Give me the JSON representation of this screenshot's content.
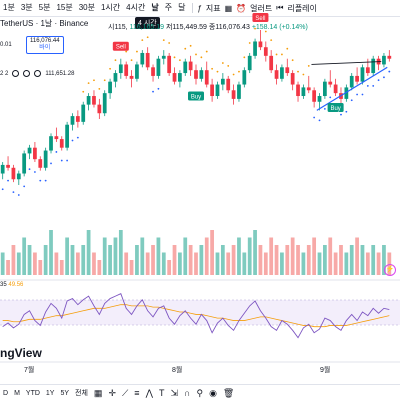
{
  "toolbar": {
    "timeframes": [
      "1분",
      "3분",
      "5분",
      "15분",
      "30분",
      "1시간",
      "4시간",
      "날",
      "주",
      "달"
    ],
    "active_timeframe": "날",
    "indicators_label": "지표",
    "alerts_label": "얼러트",
    "replay_label": "리플레이"
  },
  "tooltip": "4 시간",
  "symbol": {
    "name": "TetherUS · 1날 · Binance"
  },
  "ohlc": {
    "o": "시115,",
    "h": "116,165.19",
    "l": "저115,449.59",
    "c": "종116,076.43",
    "change": "+158.14 (+0.14%)"
  },
  "price_box": {
    "price": "116,076.44",
    "sub": "바이"
  },
  "left_values": {
    "v1": "0.01",
    "v2": "111,651.28"
  },
  "indicator_row": {
    "params": "2 2"
  },
  "signals": {
    "sell": "Sell",
    "buy": "Buy"
  },
  "rsi": {
    "prefix": "35",
    "value": "49.56"
  },
  "brand": "ngView",
  "months": {
    "jul": "7월",
    "aug": "8월",
    "sep": "9월"
  },
  "bottom": {
    "d": "D",
    "m": "M",
    "ytd": "YTD",
    "y1": "1Y",
    "y5": "5Y",
    "all": "전체"
  },
  "colors": {
    "up": "#089981",
    "down": "#f23645",
    "accent": "#2962ff"
  },
  "chart_data": {
    "type": "candlestick",
    "candles": [
      [
        100,
        104,
        98,
        103
      ],
      [
        103,
        106,
        101,
        102
      ],
      [
        102,
        103,
        97,
        98
      ],
      [
        98,
        101,
        96,
        100
      ],
      [
        100,
        108,
        99,
        107
      ],
      [
        107,
        110,
        105,
        109
      ],
      [
        109,
        111,
        104,
        105
      ],
      [
        105,
        106,
        101,
        102
      ],
      [
        102,
        109,
        101,
        108
      ],
      [
        108,
        114,
        107,
        113
      ],
      [
        113,
        116,
        111,
        112
      ],
      [
        112,
        113,
        108,
        109
      ],
      [
        109,
        118,
        108,
        117
      ],
      [
        117,
        121,
        115,
        120
      ],
      [
        120,
        122,
        116,
        118
      ],
      [
        118,
        125,
        117,
        124
      ],
      [
        124,
        128,
        122,
        127
      ],
      [
        127,
        129,
        123,
        124
      ],
      [
        124,
        126,
        119,
        121
      ],
      [
        121,
        129,
        120,
        128
      ],
      [
        128,
        133,
        126,
        132
      ],
      [
        132,
        136,
        130,
        135
      ],
      [
        135,
        140,
        133,
        138
      ],
      [
        138,
        139,
        133,
        134
      ],
      [
        134,
        136,
        130,
        133
      ],
      [
        133,
        139,
        132,
        138
      ],
      [
        138,
        143,
        137,
        142
      ],
      [
        142,
        144,
        136,
        137
      ],
      [
        137,
        138,
        132,
        134
      ],
      [
        134,
        141,
        133,
        140
      ],
      [
        140,
        143,
        138,
        141
      ],
      [
        141,
        142,
        134,
        135
      ],
      [
        135,
        137,
        131,
        132
      ],
      [
        132,
        136,
        130,
        135
      ],
      [
        135,
        140,
        134,
        139
      ],
      [
        139,
        141,
        134,
        136
      ],
      [
        136,
        138,
        131,
        133
      ],
      [
        133,
        137,
        132,
        136
      ],
      [
        136,
        139,
        130,
        131
      ],
      [
        131,
        133,
        125,
        127
      ],
      [
        127,
        132,
        126,
        131
      ],
      [
        131,
        135,
        129,
        133
      ],
      [
        133,
        134,
        128,
        129
      ],
      [
        129,
        131,
        124,
        126
      ],
      [
        126,
        132,
        125,
        131
      ],
      [
        131,
        137,
        130,
        136
      ],
      [
        136,
        142,
        135,
        141
      ],
      [
        141,
        147,
        140,
        146
      ],
      [
        146,
        150,
        143,
        144
      ],
      [
        144,
        146,
        139,
        141
      ],
      [
        141,
        143,
        135,
        136
      ],
      [
        136,
        138,
        131,
        133
      ],
      [
        133,
        138,
        132,
        137
      ],
      [
        137,
        140,
        134,
        135
      ],
      [
        135,
        136,
        129,
        131
      ],
      [
        131,
        132,
        125,
        127
      ],
      [
        127,
        131,
        126,
        130
      ],
      [
        130,
        134,
        128,
        129
      ],
      [
        129,
        130,
        123,
        125
      ],
      [
        125,
        128,
        122,
        127
      ],
      [
        127,
        133,
        126,
        132
      ],
      [
        132,
        136,
        130,
        131
      ],
      [
        131,
        133,
        127,
        128
      ],
      [
        128,
        130,
        124,
        126
      ],
      [
        126,
        131,
        125,
        130
      ],
      [
        130,
        135,
        129,
        134
      ],
      [
        134,
        137,
        131,
        132
      ],
      [
        132,
        138,
        131,
        137
      ],
      [
        137,
        140,
        134,
        135
      ],
      [
        135,
        141,
        134,
        140
      ],
      [
        140,
        141,
        136,
        138
      ],
      [
        138,
        142,
        137,
        141
      ],
      [
        141,
        143,
        139,
        140
      ]
    ],
    "volumes": [
      3,
      2,
      4,
      3,
      5,
      4,
      3,
      2,
      4,
      6,
      3,
      2,
      5,
      4,
      3,
      4,
      6,
      3,
      2,
      5,
      4,
      5,
      6,
      3,
      2,
      4,
      5,
      3,
      4,
      5,
      3,
      2,
      4,
      3,
      5,
      4,
      3,
      4,
      5,
      6,
      3,
      4,
      3,
      4,
      5,
      3,
      5,
      6,
      4,
      3,
      5,
      4,
      3,
      4,
      5,
      4,
      3,
      4,
      5,
      3,
      4,
      5,
      3,
      4,
      3,
      4,
      5,
      4,
      3,
      4,
      3,
      4,
      3
    ],
    "rsi": [
      45,
      48,
      44,
      47,
      55,
      58,
      50,
      46,
      57,
      64,
      60,
      52,
      66,
      68,
      63,
      67,
      70,
      62,
      55,
      64,
      68,
      70,
      72,
      60,
      55,
      62,
      67,
      58,
      53,
      60,
      62,
      52,
      47,
      54,
      58,
      52,
      47,
      55,
      50,
      40,
      48,
      52,
      46,
      42,
      50,
      56,
      62,
      66,
      58,
      52,
      45,
      42,
      50,
      47,
      42,
      36,
      44,
      47,
      40,
      43,
      52,
      50,
      45,
      42,
      50,
      55,
      50,
      57,
      54,
      60,
      56,
      60,
      59
    ],
    "rsi_ma": [
      50,
      50,
      49,
      49,
      50,
      51,
      51,
      51,
      52,
      53,
      54,
      54,
      55,
      56,
      57,
      58,
      59,
      60,
      60,
      60,
      61,
      62,
      63,
      63,
      62,
      62,
      62,
      62,
      61,
      61,
      60,
      59,
      58,
      57,
      57,
      56,
      55,
      55,
      54,
      53,
      52,
      52,
      51,
      50,
      50,
      50,
      51,
      52,
      53,
      53,
      52,
      51,
      50,
      49,
      48,
      47,
      46,
      46,
      45,
      45,
      45,
      46,
      46,
      46,
      46,
      47,
      48,
      49,
      50,
      51,
      52,
      53,
      54
    ]
  }
}
